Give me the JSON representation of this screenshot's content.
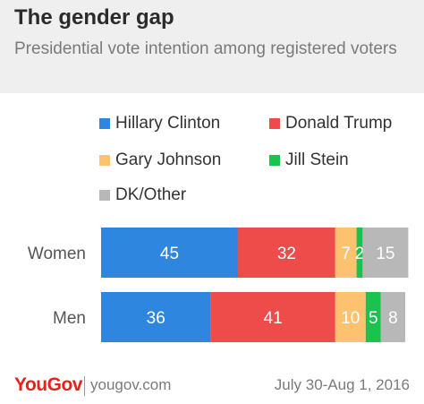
{
  "header": {
    "title": "The gender gap",
    "subtitle": "Presidential vote intention among registered voters"
  },
  "chart_data": {
    "type": "bar",
    "orientation": "horizontal",
    "stacked": true,
    "categories": [
      "Women",
      "Men"
    ],
    "series": [
      {
        "name": "Hillary Clinton",
        "values": [
          45,
          36
        ],
        "color": "#2e86de"
      },
      {
        "name": "Donald Trump",
        "values": [
          32,
          41
        ],
        "color": "#ee4b4b"
      },
      {
        "name": "Gary Johnson",
        "values": [
          7,
          10
        ],
        "color": "#fcc26f"
      },
      {
        "name": "Jill Stein",
        "values": [
          2,
          5
        ],
        "color": "#1bc24d"
      },
      {
        "name": "DK/Other",
        "values": [
          15,
          8
        ],
        "color": "#b8b8b8"
      }
    ],
    "xlim": [
      0,
      100
    ],
    "grid": false,
    "legend_position": "top"
  },
  "footer": {
    "brand": "YouGov",
    "website": "yougov.com",
    "date": "July 30-Aug 1, 2016"
  }
}
